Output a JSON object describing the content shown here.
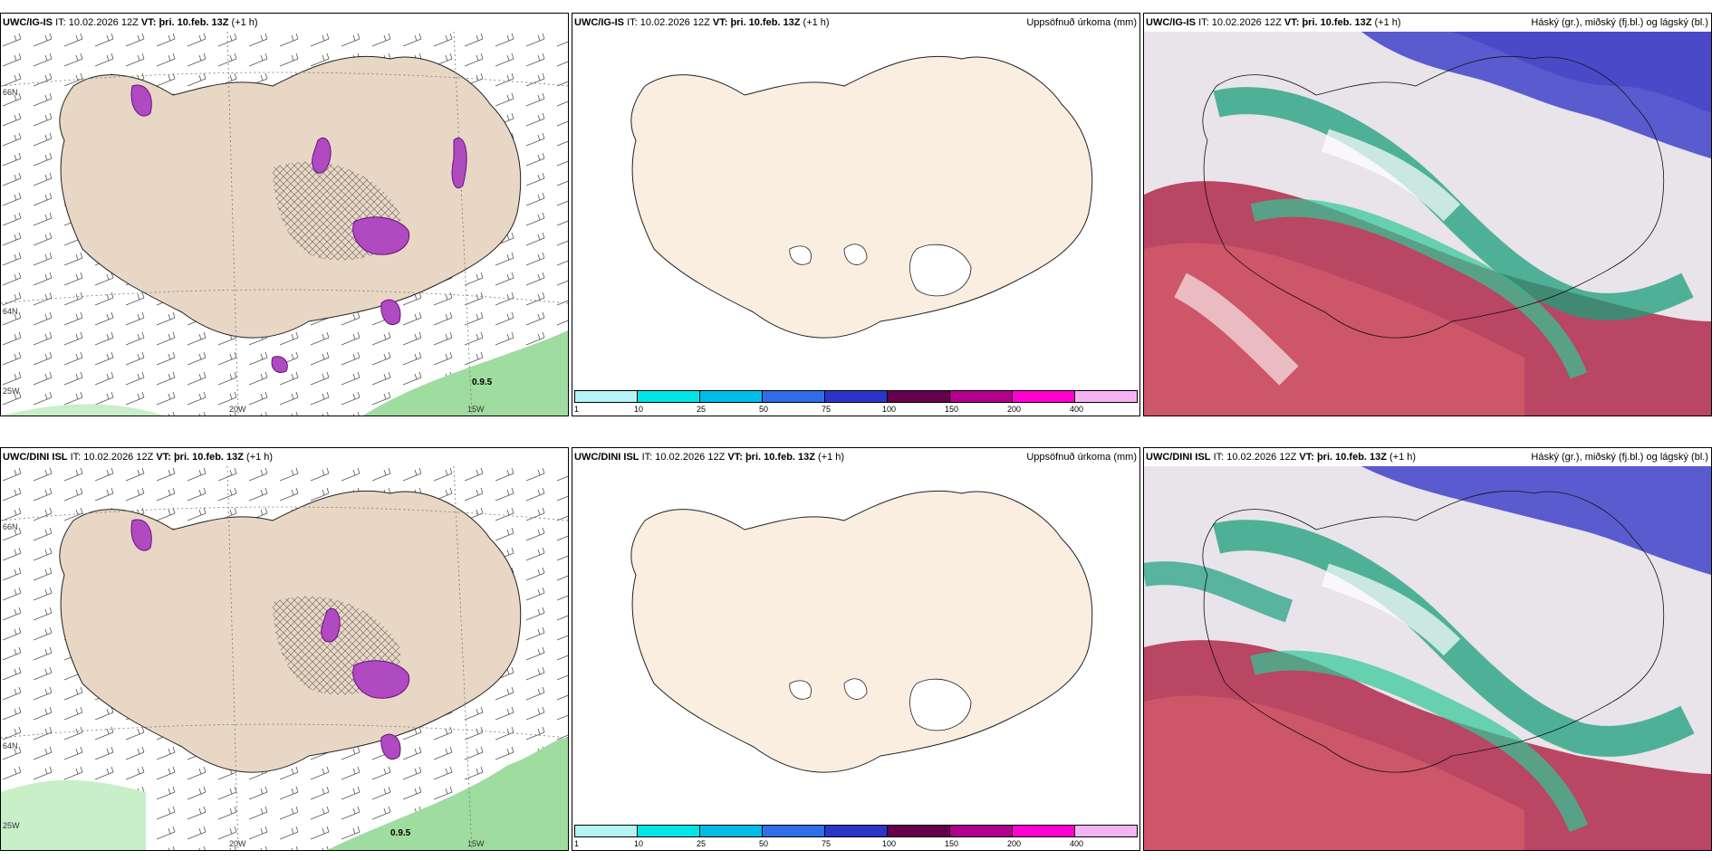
{
  "rows": [
    {
      "model": "UWC/IG-IS",
      "it_label": "IT:",
      "it_value": "10.02.2026 12Z",
      "vt_label": "VT:",
      "vt_value": "þri. 10.feb. 13Z",
      "lead": "(+1 h)",
      "wind_values": [
        "0.9.5"
      ]
    },
    {
      "model": "UWC/DINI ISL",
      "it_label": "IT:",
      "it_value": "10.02.2026 12Z",
      "vt_label": "VT:",
      "vt_value": "þri. 10.feb. 13Z",
      "lead": "(+1 h)",
      "wind_values": [
        "0.9.5"
      ]
    }
  ],
  "precip_title": "Uppsöfnuð úrkoma (mm)",
  "cloud_title": "Háský (gr.), miðský (fj.bl.) og lágský (bl.)",
  "axis_labels": {
    "lat66": "66N",
    "lat64": "64N",
    "lon20": "20W",
    "lon15": "15W",
    "lon25": "25W"
  },
  "colorbar": {
    "ticks": [
      "1",
      "10",
      "25",
      "50",
      "75",
      "100",
      "150",
      "200",
      "400"
    ],
    "colors": [
      "#b4f4f4",
      "#00e6e6",
      "#00bde8",
      "#2f6ee8",
      "#2b36c8",
      "#66004d",
      "#b0008c",
      "#ff00d0",
      "#f4b4f4"
    ]
  },
  "colors": {
    "land": "#f6e4d2",
    "cloud_land": "#e8d7c5",
    "sea_green": "#9fdc9f",
    "high_cloud": "#2b2bc0",
    "mid_cloud": "#1aa07a",
    "low_cloud": "#b0103a"
  },
  "icons": [
    "wind-barb-icon",
    "precip-contour-icon"
  ]
}
